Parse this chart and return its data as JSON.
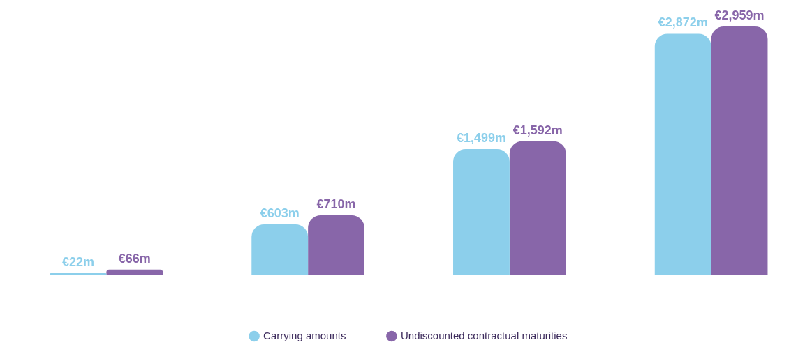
{
  "chart_data": {
    "type": "bar",
    "categories": [
      null,
      null,
      null,
      null
    ],
    "series": [
      {
        "name": "Carrying amounts",
        "color": "#8ccfeb",
        "values": [
          22,
          603,
          1499,
          2872
        ],
        "value_labels": [
          "€22m",
          "€603m",
          "€1,499m",
          "€2,872m"
        ]
      },
      {
        "name": "Undiscounted contractual maturities",
        "color": "#8866a9",
        "values": [
          66,
          710,
          1592,
          2959
        ],
        "value_labels": [
          "€66m",
          "€710m",
          "€1,592m",
          "€2,959m"
        ]
      }
    ],
    "legend": "bottom",
    "grid": false
  }
}
